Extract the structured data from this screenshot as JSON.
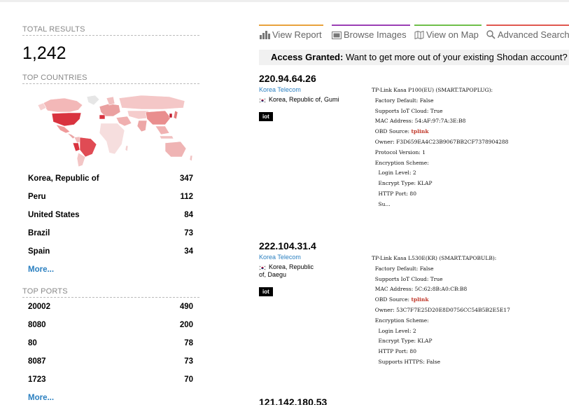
{
  "summary": {
    "total_title": "TOTAL RESULTS",
    "total_count": "1,242"
  },
  "countries": {
    "title": "TOP COUNTRIES",
    "items": [
      {
        "label": "Korea, Republic of",
        "count": "347"
      },
      {
        "label": "Peru",
        "count": "112"
      },
      {
        "label": "United States",
        "count": "84"
      },
      {
        "label": "Brazil",
        "count": "73"
      },
      {
        "label": "Spain",
        "count": "34"
      }
    ],
    "more": "More..."
  },
  "ports": {
    "title": "TOP PORTS",
    "items": [
      {
        "label": "20002",
        "count": "490"
      },
      {
        "label": "8080",
        "count": "200"
      },
      {
        "label": "80",
        "count": "78"
      },
      {
        "label": "8087",
        "count": "73"
      },
      {
        "label": "1723",
        "count": "70"
      }
    ],
    "more": "More..."
  },
  "nav": {
    "tabs": [
      {
        "label": "View Report",
        "icon": "bar-chart-icon",
        "color": "#e8a23c"
      },
      {
        "label": "Browse Images",
        "icon": "image-icon",
        "color": "#9b3fb5"
      },
      {
        "label": "View on Map",
        "icon": "map-icon",
        "color": "#6fbf4a"
      },
      {
        "label": "Advanced Search",
        "icon": "search-icon",
        "color": "#e0584f"
      }
    ]
  },
  "access_banner": {
    "bold": "Access Granted:",
    "text": " Want to get more out of your existing Shodan account? Ch"
  },
  "results": [
    {
      "ip": "220.94.64.26",
      "org": "Korea Telecom",
      "location": "Korea, Republic of, Gumi",
      "tag": "iot",
      "banner_lines": [
        "TP-Link Kasa P100(EU) (SMART.TAPOPLUG):",
        "  Factory Default: False",
        "  Supports IoT Cloud: True",
        "  MAC Address: 54:AF:97:7A:3E:B8",
        "  OBD Source: ",
        "  Owner: F3D659EA4C23B9067BB2CF7378904288",
        "  Protocol Version: 1",
        "  Encryption Scheme:",
        "    Login Level: 2",
        "    Encrypt Type: KLAP",
        "    HTTP Port: 80",
        "    Su..."
      ],
      "obd_value": "tplink"
    },
    {
      "ip": "222.104.31.4",
      "org": "Korea Telecom",
      "location_line1": "Korea, Republic",
      "location_line2": "of, Daegu",
      "tag": "iot",
      "banner_lines": [
        "TP-Link Kasa L530E(KR) (SMART.TAPOBULB):",
        "  Factory Default: False",
        "  Supports IoT Cloud: True",
        "  MAC Address: 5C:62:8B:A0:CB:B8",
        "  OBD Source: ",
        "  Owner: 53C7F7E25D20E8D0756CC54B5B2E5E17",
        "  Encryption Scheme:",
        "    Login Level: 2",
        "    Encrypt Type: KLAP",
        "    HTTP Port: 80",
        "    Supports HTTPS: False"
      ],
      "obd_value": "tplink"
    },
    {
      "ip": "121.142.180.53"
    }
  ]
}
